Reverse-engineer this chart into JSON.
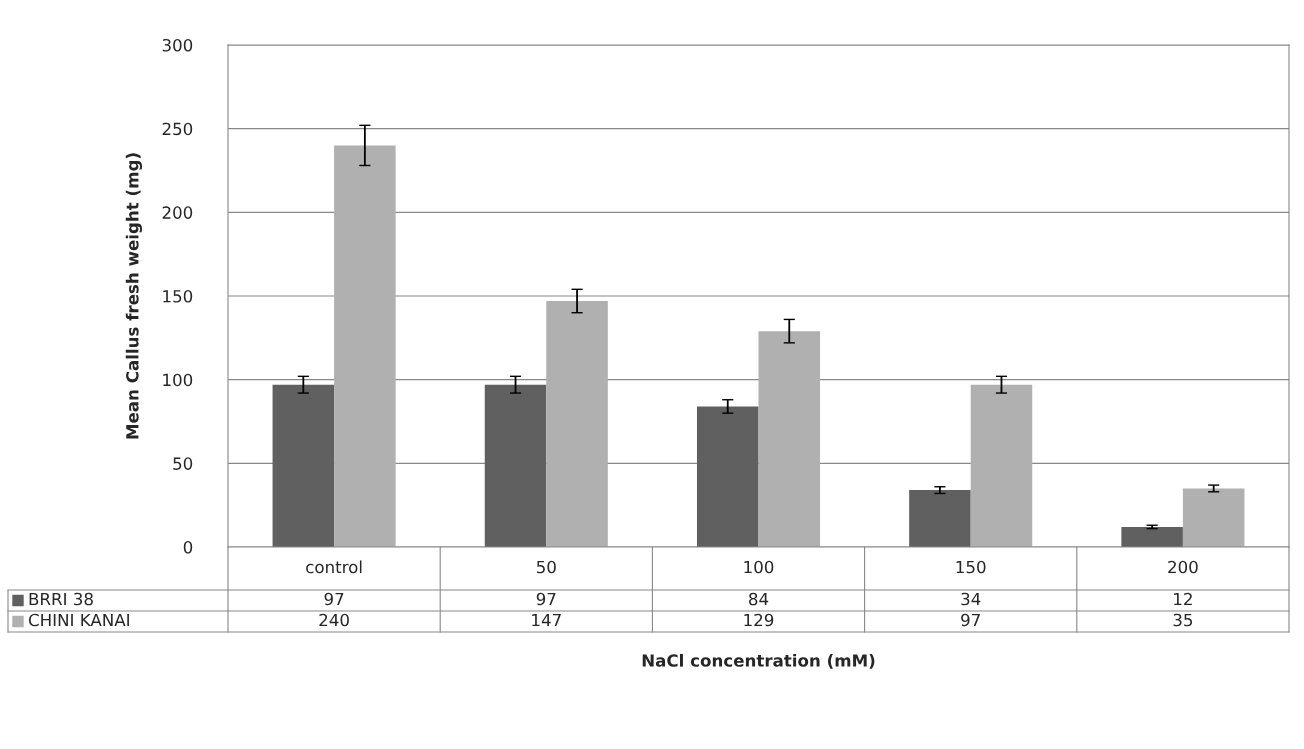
{
  "chart_data": {
    "type": "bar",
    "xlabel": "NaCl concentration (mM)",
    "ylabel": "Mean Callus fresh weight (mg)",
    "categories": [
      "control",
      "50",
      "100",
      "150",
      "200"
    ],
    "series": [
      {
        "name": "BRRI 38",
        "color": "#606060",
        "values": [
          97,
          97,
          84,
          34,
          12
        ],
        "errors": [
          5,
          5,
          4,
          2,
          1
        ]
      },
      {
        "name": "CHINI KANAI",
        "color": "#b0b0b0",
        "values": [
          240,
          147,
          129,
          97,
          35
        ],
        "errors": [
          12,
          7,
          7,
          5,
          2
        ]
      }
    ],
    "ylim": [
      0,
      300
    ],
    "yticks": [
      0,
      50,
      100,
      150,
      200,
      250,
      300
    ],
    "grid": "y",
    "legend": "bottom",
    "data_labels": true
  }
}
